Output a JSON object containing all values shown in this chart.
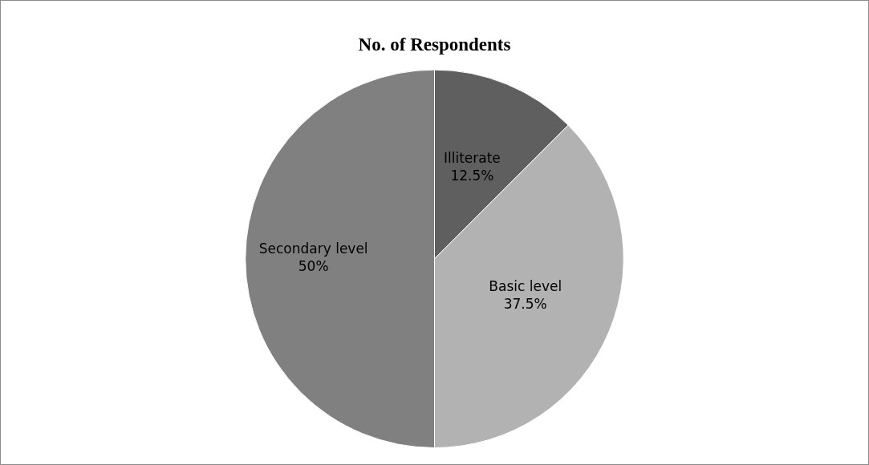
{
  "chart_data": {
    "type": "pie",
    "title": "No. of Respondents",
    "categories": [
      "Illiterate",
      "Basic level",
      "Secondary level"
    ],
    "values": [
      12.5,
      37.5,
      50
    ],
    "colors": [
      "#5f5f5f",
      "#b2b2b2",
      "#808080"
    ],
    "value_labels": [
      "12.5%",
      "37.5%",
      "50%"
    ],
    "legend": false
  }
}
